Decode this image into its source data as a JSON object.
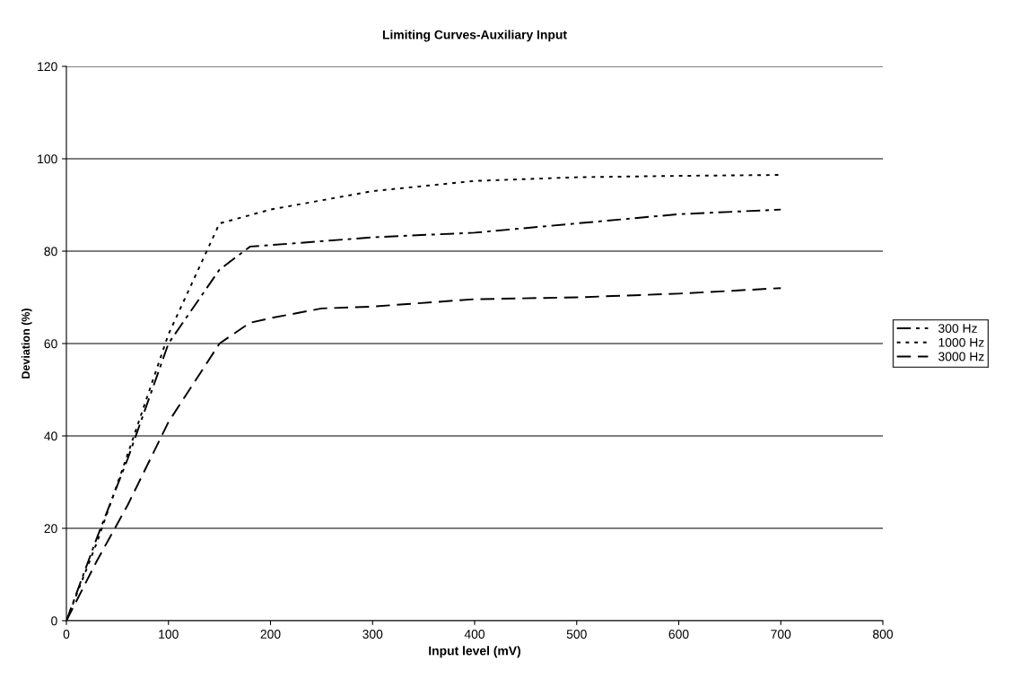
{
  "chart_data": {
    "type": "line",
    "title": "Limiting Curves-Auxiliary Input",
    "xlabel": "Input level (mV)",
    "ylabel": "Deviation (%)",
    "xlim": [
      0,
      800
    ],
    "xticks": [
      0,
      100,
      200,
      300,
      400,
      500,
      600,
      700,
      800
    ],
    "ylim": [
      0,
      120
    ],
    "yticks": [
      0,
      20,
      40,
      60,
      80,
      100,
      120
    ],
    "grid": "y",
    "legend": "right",
    "marker": "none",
    "series": [
      {
        "name": "300 Hz",
        "color": "#000000",
        "line_style": "dashdot",
        "x": [
          0,
          30,
          60,
          100,
          150,
          180,
          200,
          300,
          400,
          500,
          600,
          700
        ],
        "values": [
          0,
          18,
          35,
          60,
          76,
          81,
          81.3,
          83,
          84,
          86,
          88,
          89
        ]
      },
      {
        "name": "1000 Hz",
        "color": "#000000",
        "line_style": "dotted",
        "x": [
          0,
          30,
          60,
          100,
          150,
          200,
          300,
          400,
          500,
          600,
          700
        ],
        "values": [
          0,
          17,
          36,
          62,
          86,
          89,
          93,
          95.2,
          96,
          96.3,
          96.5
        ]
      },
      {
        "name": "3000 Hz",
        "color": "#000000",
        "line_style": "dashed",
        "x": [
          0,
          30,
          60,
          100,
          150,
          180,
          200,
          250,
          300,
          400,
          500,
          600,
          700
        ],
        "values": [
          0,
          13,
          25,
          43,
          60,
          64.5,
          65.5,
          67.6,
          68,
          69.6,
          70,
          70.8,
          72
        ]
      }
    ]
  }
}
